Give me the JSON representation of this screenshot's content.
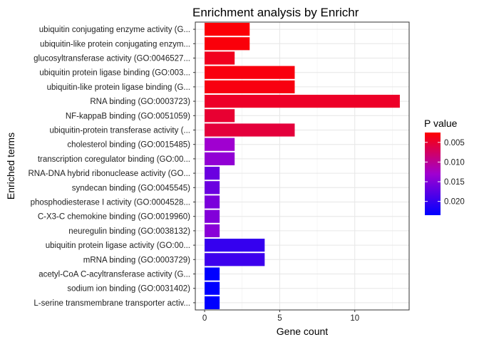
{
  "chart_data": {
    "type": "bar",
    "orientation": "horizontal",
    "title": "Enrichment analysis by Enrichr",
    "xlabel": "Gene count",
    "ylabel": "Enriched terms",
    "xlim": [
      -0.62,
      13.62
    ],
    "xticks": [
      0,
      5,
      10
    ],
    "xtick_labels": [
      "0",
      "5",
      "10"
    ],
    "grid": true,
    "legend_position": "right",
    "bar_color_map": {
      "low_p_color": "#ff0000",
      "high_p_color": "#0000ff",
      "scale_min": 0.0025,
      "scale_max": 0.0235
    },
    "categories": [
      "ubiquitin conjugating enzyme activity (G...",
      "ubiquitin-like protein conjugating enzym...",
      "glucosyltransferase activity (GO:0046527...",
      "ubiquitin protein ligase binding (GO:003...",
      "ubiquitin-like protein ligase binding (G...",
      "RNA binding (GO:0003723)",
      "NF-kappaB binding (GO:0051059)",
      "ubiquitin-protein transferase activity (...",
      "cholesterol binding (GO:0015485)",
      "transcription coregulator binding (GO:00...",
      "RNA-DNA hybrid ribonuclease activity (GO...",
      "syndecan binding (GO:0045545)",
      "phosphodiesterase I activity (GO:0004528...",
      "C-X3-C chemokine binding (GO:0019960)",
      "neuregulin binding (GO:0038132)",
      "ubiquitin protein ligase activity (GO:00...",
      "mRNA binding (GO:0003729)",
      "acetyl-CoA C-acyltransferase activity (G...",
      "sodium ion binding (GO:0031402)",
      "L-serine transmembrane transporter activ..."
    ],
    "values": [
      3,
      3,
      2,
      6,
      6,
      13,
      2,
      6,
      2,
      2,
      1,
      1,
      1,
      1,
      1,
      4,
      4,
      1,
      1,
      1
    ],
    "p_values": [
      0.0028,
      0.003,
      0.004,
      0.0032,
      0.0033,
      0.0045,
      0.005,
      0.0055,
      0.013,
      0.014,
      0.0165,
      0.0165,
      0.0155,
      0.015,
      0.0145,
      0.02,
      0.0195,
      0.0235,
      0.0235,
      0.0235
    ],
    "legend": {
      "title": "P value",
      "ticks": [
        0.005,
        0.01,
        0.015,
        0.02
      ],
      "tick_labels": [
        "0.005",
        "0.010",
        "0.015",
        "0.020"
      ]
    }
  }
}
